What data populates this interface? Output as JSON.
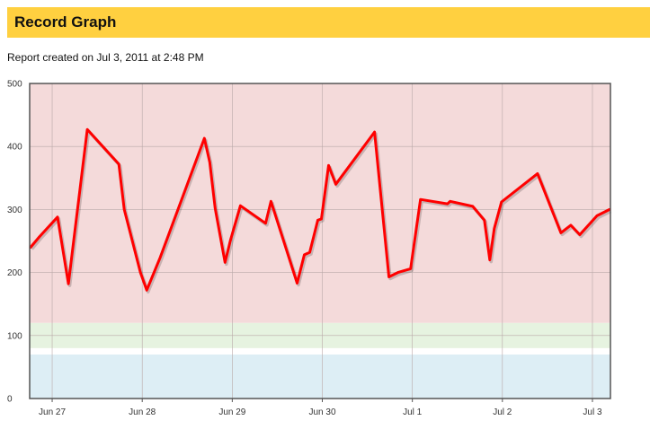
{
  "page": {
    "title": "Record Graph",
    "subtitle": "Report created on Jul 3, 2011 at 2:48 PM"
  },
  "colors": {
    "header_bg": "#ffd040",
    "band_red": "#f4dada",
    "band_green": "#e6f3e0",
    "band_blue": "#ddeef5",
    "line": "#ff0000"
  },
  "chart_data": {
    "type": "line",
    "title": "",
    "xlabel": "",
    "ylabel": "",
    "ylim": [
      0,
      500
    ],
    "xlim": [
      26.75,
      33.2
    ],
    "grid": true,
    "y_ticks": [
      "0",
      "100",
      "200",
      "300",
      "400",
      "500"
    ],
    "x_ticks": [
      {
        "value": 27,
        "label": "Jun 27"
      },
      {
        "value": 28,
        "label": "Jun 28"
      },
      {
        "value": 29,
        "label": "Jun 29"
      },
      {
        "value": 30,
        "label": "Jun 30"
      },
      {
        "value": 31,
        "label": "Jul 1"
      },
      {
        "value": 32,
        "label": "Jul 2"
      },
      {
        "value": 33,
        "label": "Jul 3"
      }
    ],
    "bands": [
      {
        "from": 0,
        "to": 70,
        "color": "#ddeef5"
      },
      {
        "from": 70,
        "to": 80,
        "color": "#ffffff"
      },
      {
        "from": 80,
        "to": 120,
        "color": "#e6f3e0"
      },
      {
        "from": 120,
        "to": 500,
        "color": "#f4dada"
      }
    ],
    "series": [
      {
        "x": [
          26.76,
          26.86,
          27.06,
          27.18,
          27.39,
          27.74,
          27.8,
          27.98,
          28.05,
          28.16,
          28.2,
          28.69,
          28.75,
          28.81,
          28.92,
          28.98,
          29.09,
          29.37,
          29.43,
          29.72,
          29.8,
          29.86,
          29.95,
          29.99,
          30.07,
          30.15,
          30.58,
          30.74,
          30.84,
          30.98,
          31.09,
          31.39,
          31.42,
          31.67,
          31.8,
          31.86,
          31.91,
          31.99,
          32.39,
          32.65,
          32.76,
          32.86,
          33.05,
          33.19
        ],
        "y": [
          240,
          257,
          288,
          182,
          427,
          372,
          300,
          200,
          172,
          210,
          224,
          413,
          375,
          302,
          216,
          251,
          306,
          278,
          313,
          183,
          228,
          232,
          283,
          285,
          370,
          340,
          423,
          193,
          200,
          206,
          316,
          309,
          313,
          305,
          283,
          220,
          270,
          312,
          357,
          263,
          275,
          260,
          290,
          300
        ]
      }
    ]
  }
}
